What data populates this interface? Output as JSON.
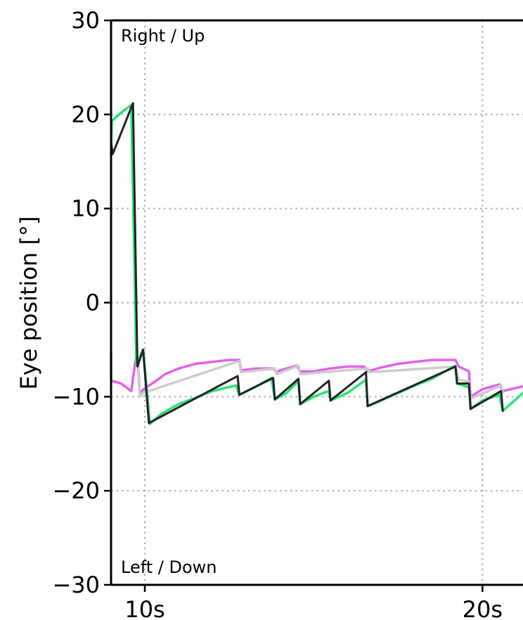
{
  "chart_data": {
    "type": "line",
    "title": "",
    "xlabel": "",
    "ylabel": "Eye position [°]",
    "xlim": [
      9.0,
      21.2
    ],
    "ylim": [
      -30,
      30
    ],
    "grid": true,
    "x_ticks": [
      {
        "value": 10,
        "label": "10s"
      },
      {
        "value": 20,
        "label": "20s"
      }
    ],
    "y_ticks": [
      {
        "value": 30,
        "label": "30"
      },
      {
        "value": 20,
        "label": "20"
      },
      {
        "value": 10,
        "label": "10"
      },
      {
        "value": 0,
        "label": "0"
      },
      {
        "value": -10,
        "label": "−10"
      },
      {
        "value": -20,
        "label": "−20"
      },
      {
        "value": -30,
        "label": "−30"
      }
    ],
    "annotations": {
      "top": "Right / Up",
      "bottom": "Left / Down"
    },
    "series": [
      {
        "color": "#e560ec",
        "points": [
          [
            9.0,
            -5.4
          ],
          [
            9.0,
            -8.3
          ],
          [
            9.3,
            -8.6
          ],
          [
            9.6,
            -9.4
          ],
          [
            9.72,
            -6.2
          ],
          [
            9.8,
            -6.4
          ],
          [
            9.85,
            -9.6
          ],
          [
            10.0,
            -9.1
          ],
          [
            10.3,
            -8.4
          ],
          [
            10.6,
            -7.6
          ],
          [
            11.0,
            -7.0
          ],
          [
            11.5,
            -6.5
          ],
          [
            12.0,
            -6.3
          ],
          [
            12.5,
            -6.1
          ],
          [
            12.8,
            -6.1
          ],
          [
            12.85,
            -7.2
          ],
          [
            13.3,
            -7.0
          ],
          [
            13.8,
            -7.0
          ],
          [
            13.9,
            -7.4
          ],
          [
            14.0,
            -7.2
          ],
          [
            14.5,
            -6.7
          ],
          [
            14.6,
            -7.3
          ],
          [
            15.0,
            -7.3
          ],
          [
            15.5,
            -7.0
          ],
          [
            16.0,
            -6.8
          ],
          [
            16.5,
            -6.8
          ],
          [
            16.6,
            -7.3
          ],
          [
            17.0,
            -6.9
          ],
          [
            17.5,
            -6.5
          ],
          [
            18.0,
            -6.3
          ],
          [
            18.5,
            -6.1
          ],
          [
            19.2,
            -6.1
          ],
          [
            19.3,
            -6.8
          ],
          [
            19.6,
            -7.3
          ],
          [
            19.65,
            -10.0
          ],
          [
            20.0,
            -9.2
          ],
          [
            20.5,
            -8.7
          ],
          [
            20.6,
            -9.4
          ],
          [
            21.2,
            -8.9
          ]
        ]
      },
      {
        "color": "#cccccc",
        "points": [
          [
            9.72,
            -6.0
          ],
          [
            9.8,
            -6.6
          ],
          [
            9.85,
            -10.0
          ],
          [
            9.95,
            -9.6
          ],
          [
            12.8,
            -6.2
          ],
          [
            12.85,
            -7.4
          ],
          [
            13.85,
            -7.0
          ],
          [
            13.9,
            -7.6
          ],
          [
            14.55,
            -6.7
          ],
          [
            14.6,
            -7.6
          ],
          [
            16.6,
            -7.0
          ],
          [
            16.65,
            -7.4
          ],
          [
            19.2,
            -6.8
          ],
          [
            19.3,
            -8.2
          ],
          [
            19.6,
            -8.4
          ],
          [
            19.65,
            -10.2
          ],
          [
            20.55,
            -8.8
          ],
          [
            20.6,
            -9.6
          ]
        ]
      },
      {
        "color": "#2be275",
        "points": [
          [
            9.0,
            15.8
          ],
          [
            9.02,
            19.3
          ],
          [
            9.3,
            20.2
          ],
          [
            9.6,
            21.0
          ],
          [
            9.75,
            -6.6
          ],
          [
            9.95,
            -5.0
          ],
          [
            10.15,
            -12.9
          ],
          [
            10.5,
            -11.8
          ],
          [
            11.0,
            -10.8
          ],
          [
            11.5,
            -10.1
          ],
          [
            12.0,
            -9.4
          ],
          [
            12.7,
            -8.8
          ],
          [
            12.8,
            -9.8
          ],
          [
            13.3,
            -8.9
          ],
          [
            13.75,
            -8.0
          ],
          [
            13.85,
            -10.3
          ],
          [
            14.2,
            -9.6
          ],
          [
            14.55,
            -8.3
          ],
          [
            14.6,
            -10.8
          ],
          [
            15.0,
            -10.0
          ],
          [
            15.45,
            -9.4
          ],
          [
            15.5,
            -10.4
          ],
          [
            16.0,
            -9.6
          ],
          [
            16.55,
            -8.2
          ],
          [
            16.6,
            -11.0
          ],
          [
            17.0,
            -10.4
          ],
          [
            17.5,
            -9.6
          ],
          [
            18.0,
            -8.8
          ],
          [
            18.5,
            -8.1
          ],
          [
            19.2,
            -6.7
          ],
          [
            19.25,
            -8.6
          ],
          [
            19.6,
            -9.0
          ],
          [
            19.65,
            -11.3
          ],
          [
            20.0,
            -10.4
          ],
          [
            20.5,
            -9.8
          ],
          [
            20.6,
            -11.5
          ],
          [
            21.2,
            -9.6
          ]
        ]
      },
      {
        "color": "#222222",
        "points": [
          [
            9.0,
            17.0
          ],
          [
            9.05,
            15.8
          ],
          [
            9.65,
            21.2
          ],
          [
            9.78,
            -6.8
          ],
          [
            9.95,
            -5.0
          ],
          [
            10.12,
            -12.8
          ],
          [
            12.75,
            -7.8
          ],
          [
            12.8,
            -9.8
          ],
          [
            13.8,
            -8.0
          ],
          [
            13.85,
            -10.3
          ],
          [
            14.55,
            -8.1
          ],
          [
            14.6,
            -10.8
          ],
          [
            15.45,
            -8.3
          ],
          [
            15.5,
            -10.4
          ],
          [
            16.55,
            -7.4
          ],
          [
            16.6,
            -11.0
          ],
          [
            19.2,
            -6.8
          ],
          [
            19.25,
            -8.6
          ],
          [
            19.6,
            -8.6
          ],
          [
            19.65,
            -11.3
          ],
          [
            20.55,
            -9.4
          ],
          [
            20.6,
            -11.5
          ]
        ]
      }
    ]
  }
}
